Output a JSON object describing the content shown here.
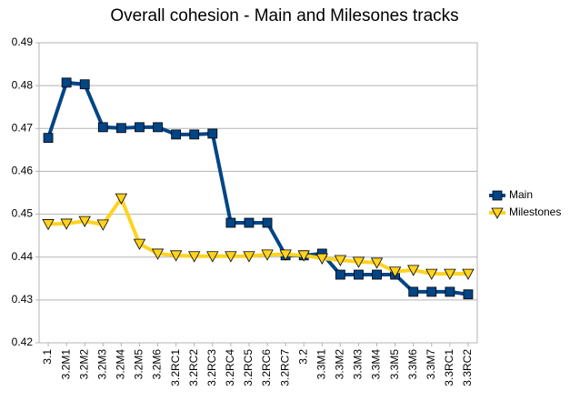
{
  "chart_data": {
    "type": "line",
    "title": "Overall cohesion - Main and Milesones tracks",
    "categories": [
      "3.1",
      "3.2M1",
      "3.2M2",
      "3.2M3",
      "3.2M4",
      "3.2M5",
      "3.2M6",
      "3.2RC1",
      "3.2RC2",
      "3.2RC3",
      "3.2RC4",
      "3.2RC5",
      "3.2RC6",
      "3.2RC7",
      "3.2",
      "3.3M1",
      "3.3M2",
      "3.3M3",
      "3.3M4",
      "3.3M5",
      "3.3M6",
      "3.3M7",
      "3.3RC1",
      "3.3RC2"
    ],
    "series": [
      {
        "name": "Main",
        "color": "#004586",
        "marker": "square",
        "values": [
          0.4678,
          0.4807,
          0.4803,
          0.4703,
          0.4701,
          0.4703,
          0.4703,
          0.4686,
          0.4686,
          0.4688,
          0.448,
          0.448,
          0.448,
          0.4404,
          0.4404,
          0.4408,
          0.4359,
          0.4359,
          0.4359,
          0.4359,
          0.4319,
          0.4319,
          0.4319,
          0.4313
        ]
      },
      {
        "name": "Milestones",
        "color": "#ffd320",
        "marker": "triangle-down",
        "values": [
          0.4477,
          0.4478,
          0.4484,
          0.4476,
          0.4537,
          0.4431,
          0.4408,
          0.4404,
          0.4402,
          0.4402,
          0.4402,
          0.4402,
          0.4406,
          0.4406,
          0.4404,
          0.4397,
          0.4393,
          0.4389,
          0.4387,
          0.4366,
          0.437,
          0.4361,
          0.4361,
          0.4361
        ]
      }
    ],
    "ylim": [
      0.42,
      0.49
    ],
    "yticks": [
      0.42,
      0.43,
      0.44,
      0.45,
      0.46,
      0.47,
      0.48,
      0.49
    ],
    "grid": true,
    "legend": "right"
  }
}
